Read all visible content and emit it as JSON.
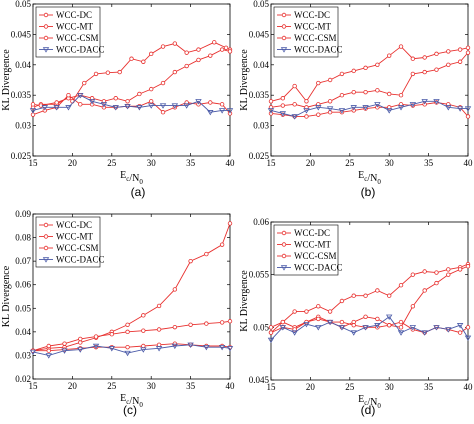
{
  "colors": {
    "DC": "#e8312f",
    "MT": "#e8312f",
    "CSM": "#e8312f",
    "DACC": "#4a5aa8"
  },
  "chart_data": [
    {
      "type": "line",
      "panel_label": "(a)",
      "xlabel": "E_c/N_0",
      "ylabel": "KL Divergence",
      "xlim": [
        15,
        40
      ],
      "ylim": [
        0.025,
        0.05
      ],
      "xticks": [
        "15",
        "20",
        "25",
        "30",
        "35",
        "40"
      ],
      "yticks": [
        "0.025",
        "0.03",
        "0.035",
        "0.04",
        "0.045",
        "0.05"
      ],
      "legend": "top-left",
      "series": [
        {
          "name": "WCC-DC",
          "x": [
            15,
            16,
            18,
            19.5,
            20,
            21.5,
            23,
            24.5,
            26,
            27.5,
            29,
            30,
            31.5,
            33,
            34.5,
            36,
            38,
            39.5,
            40
          ],
          "y": [
            0.033,
            0.0335,
            0.0335,
            0.0347,
            0.034,
            0.037,
            0.0385,
            0.0387,
            0.0388,
            0.041,
            0.0405,
            0.0418,
            0.043,
            0.0435,
            0.042,
            0.0425,
            0.0437,
            0.0428,
            0.0425
          ]
        },
        {
          "name": "WCC-MT",
          "x": [
            15,
            16,
            18,
            19.5,
            21,
            22.5,
            24,
            25.5,
            27,
            28.5,
            30,
            31.5,
            33,
            34.5,
            36,
            37.5,
            39,
            40
          ],
          "y": [
            0.0335,
            0.0333,
            0.0338,
            0.0345,
            0.035,
            0.0345,
            0.034,
            0.0345,
            0.034,
            0.0352,
            0.036,
            0.037,
            0.0388,
            0.0398,
            0.0408,
            0.0415,
            0.0425,
            0.0422
          ]
        },
        {
          "name": "WCC-CSM",
          "x": [
            15,
            16.5,
            18,
            19.5,
            21,
            22.5,
            24,
            25.5,
            27,
            28.5,
            30,
            31.5,
            33,
            34.5,
            36,
            37.5,
            39,
            40
          ],
          "y": [
            0.0318,
            0.0325,
            0.033,
            0.035,
            0.0335,
            0.0335,
            0.033,
            0.033,
            0.0332,
            0.0332,
            0.034,
            0.0322,
            0.033,
            0.0338,
            0.0335,
            0.0338,
            0.0335,
            0.032
          ]
        },
        {
          "name": "WCC-DACC",
          "x": [
            15,
            16.5,
            18,
            19.5,
            21,
            22.5,
            24,
            25.5,
            27,
            28.5,
            30,
            31.5,
            33,
            34.5,
            36,
            37.5,
            39,
            40
          ],
          "y": [
            0.0325,
            0.033,
            0.033,
            0.033,
            0.035,
            0.034,
            0.0335,
            0.033,
            0.0332,
            0.033,
            0.0333,
            0.0333,
            0.0333,
            0.0333,
            0.034,
            0.0322,
            0.0325,
            0.0325
          ]
        }
      ]
    },
    {
      "type": "line",
      "panel_label": "(b)",
      "xlabel": "E_c/N_0",
      "ylabel": "KL Divergence",
      "xlim": [
        15,
        40
      ],
      "ylim": [
        0.025,
        0.05
      ],
      "xticks": [
        "15",
        "20",
        "25",
        "30",
        "35",
        "40"
      ],
      "yticks": [
        "0.025",
        "0.03",
        "0.035",
        "0.04",
        "0.045",
        "0.05"
      ],
      "legend": "top-left",
      "series": [
        {
          "name": "WCC-DC",
          "x": [
            15,
            16.5,
            18,
            19.5,
            21,
            22.5,
            24,
            25.5,
            27,
            28.5,
            30,
            31.5,
            33,
            34.5,
            36,
            37.5,
            39,
            40
          ],
          "y": [
            0.034,
            0.0345,
            0.0365,
            0.034,
            0.037,
            0.0375,
            0.0385,
            0.039,
            0.0395,
            0.04,
            0.0415,
            0.043,
            0.041,
            0.0412,
            0.0418,
            0.0422,
            0.0425,
            0.0428
          ]
        },
        {
          "name": "WCC-MT",
          "x": [
            15,
            16.5,
            18,
            19.5,
            21,
            22.5,
            24,
            25.5,
            27,
            28.5,
            30,
            31.5,
            33,
            34.5,
            36,
            37.5,
            39,
            40
          ],
          "y": [
            0.033,
            0.0333,
            0.0335,
            0.033,
            0.0335,
            0.034,
            0.035,
            0.0355,
            0.0355,
            0.0358,
            0.0352,
            0.035,
            0.0385,
            0.0388,
            0.0392,
            0.04,
            0.0405,
            0.042
          ]
        },
        {
          "name": "WCC-CSM",
          "x": [
            15,
            16.5,
            18,
            19.5,
            21,
            22.5,
            24,
            25.5,
            27,
            28.5,
            30,
            31.5,
            33,
            34.5,
            36,
            37.5,
            39,
            40
          ],
          "y": [
            0.032,
            0.0318,
            0.0315,
            0.0315,
            0.0318,
            0.0322,
            0.0322,
            0.0325,
            0.0328,
            0.033,
            0.033,
            0.0335,
            0.0333,
            0.0335,
            0.0338,
            0.0335,
            0.033,
            0.0315
          ]
        },
        {
          "name": "WCC-DACC",
          "x": [
            15,
            16.5,
            18,
            19.5,
            21,
            22.5,
            24,
            25.5,
            27,
            28.5,
            30,
            31.5,
            33,
            34.5,
            36,
            37.5,
            39,
            40
          ],
          "y": [
            0.0325,
            0.032,
            0.0315,
            0.0325,
            0.033,
            0.0328,
            0.0325,
            0.033,
            0.033,
            0.0335,
            0.0325,
            0.033,
            0.0335,
            0.034,
            0.034,
            0.033,
            0.0328,
            0.0328
          ]
        }
      ]
    },
    {
      "type": "line",
      "panel_label": "(c)",
      "xlabel": "E_c/N_0",
      "ylabel": "KL Divergence",
      "xlim": [
        15,
        40
      ],
      "ylim": [
        0.02,
        0.09
      ],
      "xticks": [
        "15",
        "20",
        "25",
        "30",
        "35",
        "40"
      ],
      "yticks": [
        "0.02",
        "0.03",
        "0.04",
        "0.05",
        "0.06",
        "0.07",
        "0.08",
        "0.09"
      ],
      "legend": "top-left",
      "series": [
        {
          "name": "WCC-DC",
          "x": [
            15,
            17,
            19,
            21,
            23,
            25,
            27,
            29,
            31,
            33,
            35,
            37,
            39,
            40
          ],
          "y": [
            0.032,
            0.033,
            0.0335,
            0.0355,
            0.0375,
            0.04,
            0.043,
            0.047,
            0.051,
            0.058,
            0.07,
            0.073,
            0.077,
            0.086
          ]
        },
        {
          "name": "WCC-MT",
          "x": [
            15,
            17,
            19,
            21,
            23,
            25,
            27,
            29,
            31,
            33,
            35,
            37,
            39,
            40
          ],
          "y": [
            0.032,
            0.034,
            0.035,
            0.037,
            0.038,
            0.039,
            0.04,
            0.0405,
            0.041,
            0.042,
            0.043,
            0.0435,
            0.044,
            0.0445
          ]
        },
        {
          "name": "WCC-CSM",
          "x": [
            15,
            17,
            19,
            21,
            23,
            25,
            27,
            29,
            31,
            33,
            35,
            37,
            39,
            40
          ],
          "y": [
            0.032,
            0.032,
            0.0325,
            0.033,
            0.0335,
            0.0335,
            0.0335,
            0.034,
            0.0345,
            0.035,
            0.0345,
            0.034,
            0.034,
            0.0335
          ]
        },
        {
          "name": "WCC-DACC",
          "x": [
            15,
            17,
            19,
            21,
            23,
            25,
            27,
            29,
            31,
            33,
            35,
            37,
            39,
            40
          ],
          "y": [
            0.0315,
            0.03,
            0.032,
            0.0325,
            0.034,
            0.033,
            0.031,
            0.0325,
            0.033,
            0.034,
            0.0345,
            0.0335,
            0.0335,
            0.033
          ]
        }
      ]
    },
    {
      "type": "line",
      "panel_label": "(d)",
      "xlabel": "E_c/N_0",
      "ylabel": "KL Divergence",
      "xlim": [
        15,
        40
      ],
      "ylim": [
        0.045,
        0.06
      ],
      "xticks": [
        "15",
        "20",
        "25",
        "30",
        "35",
        "40"
      ],
      "yticks": [
        "0.045",
        "0.05",
        "0.055",
        "0.06"
      ],
      "legend": "top-left",
      "series": [
        {
          "name": "WCC-DC",
          "x": [
            15,
            16.5,
            18,
            19.5,
            21,
            22.5,
            24,
            25.5,
            27,
            28.5,
            30,
            31.5,
            33,
            34.5,
            36,
            37.5,
            39,
            40
          ],
          "y": [
            0.05,
            0.0505,
            0.0515,
            0.0515,
            0.052,
            0.0515,
            0.0525,
            0.053,
            0.053,
            0.0535,
            0.053,
            0.054,
            0.055,
            0.0553,
            0.0552,
            0.0555,
            0.0557,
            0.056
          ]
        },
        {
          "name": "WCC-MT",
          "x": [
            15,
            16.5,
            18,
            19.5,
            21,
            22.5,
            24,
            25.5,
            27,
            28.5,
            30,
            31.5,
            33,
            34.5,
            36,
            37.5,
            39,
            40
          ],
          "y": [
            0.0495,
            0.0505,
            0.05,
            0.0505,
            0.051,
            0.0505,
            0.05,
            0.0505,
            0.051,
            0.0508,
            0.0502,
            0.05,
            0.052,
            0.0535,
            0.0542,
            0.055,
            0.0555,
            0.0558
          ]
        },
        {
          "name": "WCC-CSM",
          "x": [
            15,
            16.5,
            18,
            19.5,
            21,
            22.5,
            24,
            25.5,
            27,
            28.5,
            30,
            31.5,
            33,
            34.5,
            36,
            37.5,
            39,
            40
          ],
          "y": [
            0.0495,
            0.05,
            0.0498,
            0.0505,
            0.0508,
            0.0505,
            0.0505,
            0.0502,
            0.05,
            0.05,
            0.0502,
            0.0505,
            0.0498,
            0.0495,
            0.05,
            0.0498,
            0.0495,
            0.05
          ]
        },
        {
          "name": "WCC-DACC",
          "x": [
            15,
            16.5,
            18,
            19.5,
            21,
            22.5,
            24,
            25.5,
            27,
            28.5,
            30,
            31.5,
            33,
            34.5,
            36,
            37.5,
            39,
            40
          ],
          "y": [
            0.0488,
            0.05,
            0.0495,
            0.0503,
            0.05,
            0.0505,
            0.05,
            0.0495,
            0.05,
            0.0502,
            0.051,
            0.0495,
            0.05,
            0.0495,
            0.05,
            0.0498,
            0.0502,
            0.049
          ]
        }
      ]
    }
  ]
}
